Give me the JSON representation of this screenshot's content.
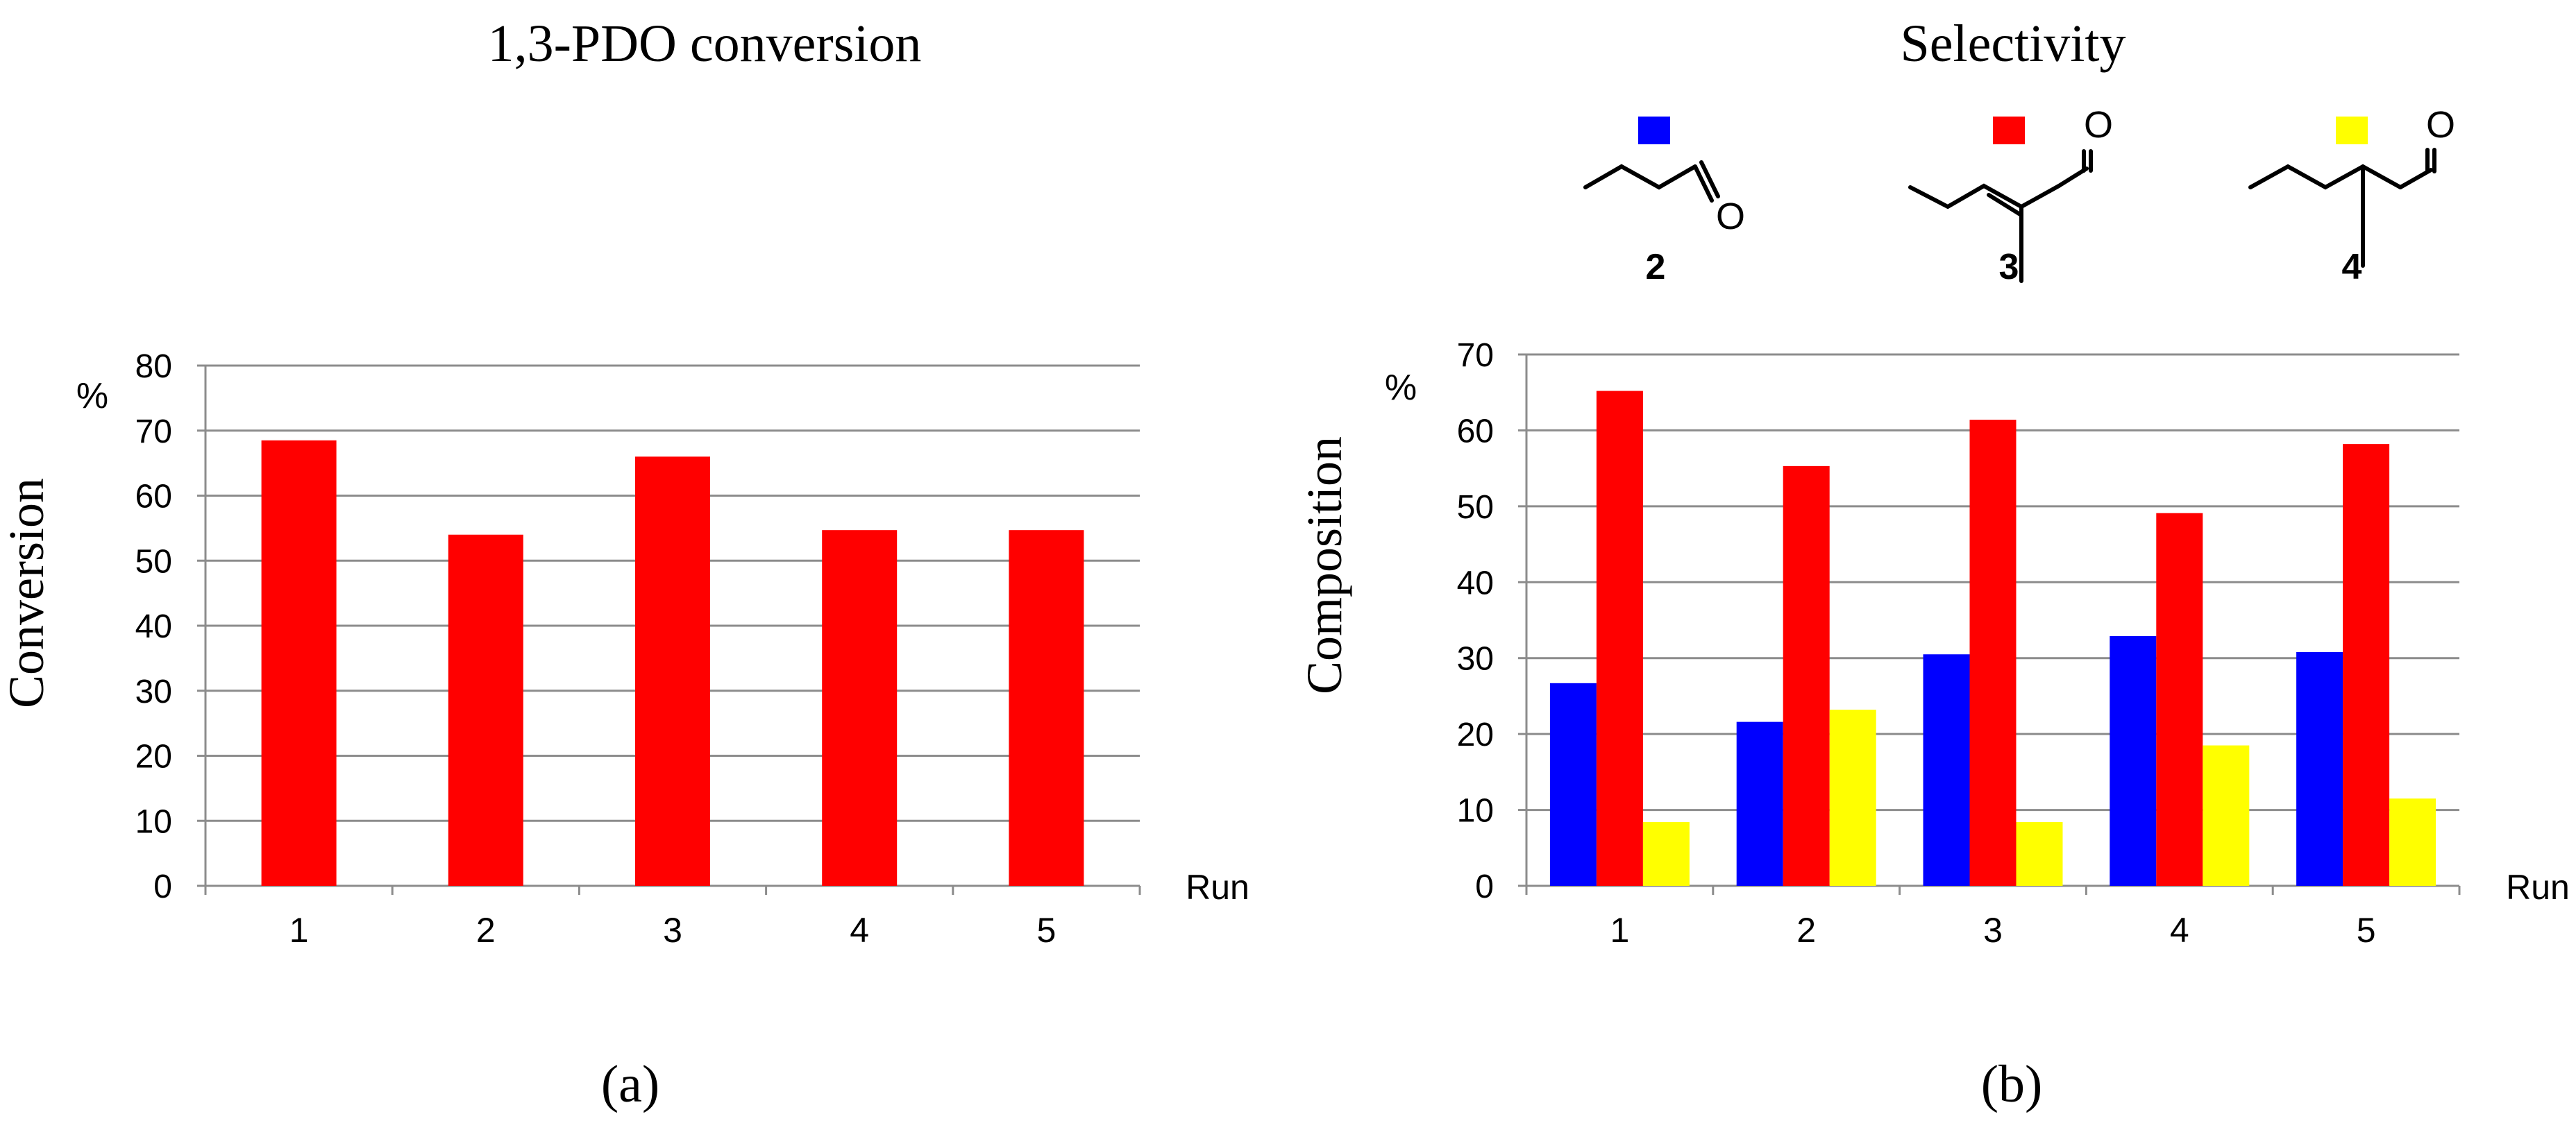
{
  "colors": {
    "blue": "#0000ff",
    "red": "#ff0000",
    "yellow": "#ffff00",
    "grid": "#8c8c8c",
    "text": "#000000"
  },
  "panel_labels": {
    "a": "(a)",
    "b": "(b)"
  },
  "legend": [
    {
      "compound": "2",
      "color_key": "blue",
      "molecule_label": "O"
    },
    {
      "compound": "3",
      "color_key": "red",
      "molecule_label": "O"
    },
    {
      "compound": "4",
      "color_key": "yellow",
      "molecule_label": "O"
    }
  ],
  "chart_data": [
    {
      "type": "bar",
      "title": "1,3-PDO conversion",
      "xlabel": "Run",
      "ylabel": "Conversion",
      "yunit": "%",
      "ylim": [
        0,
        80
      ],
      "yticks": [
        "0",
        "10",
        "20",
        "30",
        "40",
        "50",
        "60",
        "70",
        "80"
      ],
      "grid": true,
      "categories": [
        "1",
        "2",
        "3",
        "4",
        "5"
      ],
      "series": [
        {
          "name": "Conversion",
          "color_key": "red",
          "values": [
            68.5,
            54,
            66,
            54.7,
            54.7
          ]
        }
      ]
    },
    {
      "type": "bar",
      "title": "Selectivity",
      "xlabel": "Run",
      "ylabel": "Composition",
      "yunit": "%",
      "ylim": [
        0,
        70
      ],
      "yticks": [
        "0",
        "10",
        "20",
        "30",
        "40",
        "50",
        "60",
        "70"
      ],
      "grid": true,
      "categories": [
        "1",
        "2",
        "3",
        "4",
        "5"
      ],
      "series": [
        {
          "name": "2",
          "color_key": "blue",
          "values": [
            26.7,
            21.6,
            30.5,
            32.9,
            30.8
          ]
        },
        {
          "name": "3",
          "color_key": "red",
          "values": [
            65.2,
            55.3,
            61.4,
            49.1,
            58.2
          ]
        },
        {
          "name": "4",
          "color_key": "yellow",
          "values": [
            8.4,
            23.2,
            8.4,
            18.5,
            11.5
          ]
        }
      ]
    }
  ]
}
